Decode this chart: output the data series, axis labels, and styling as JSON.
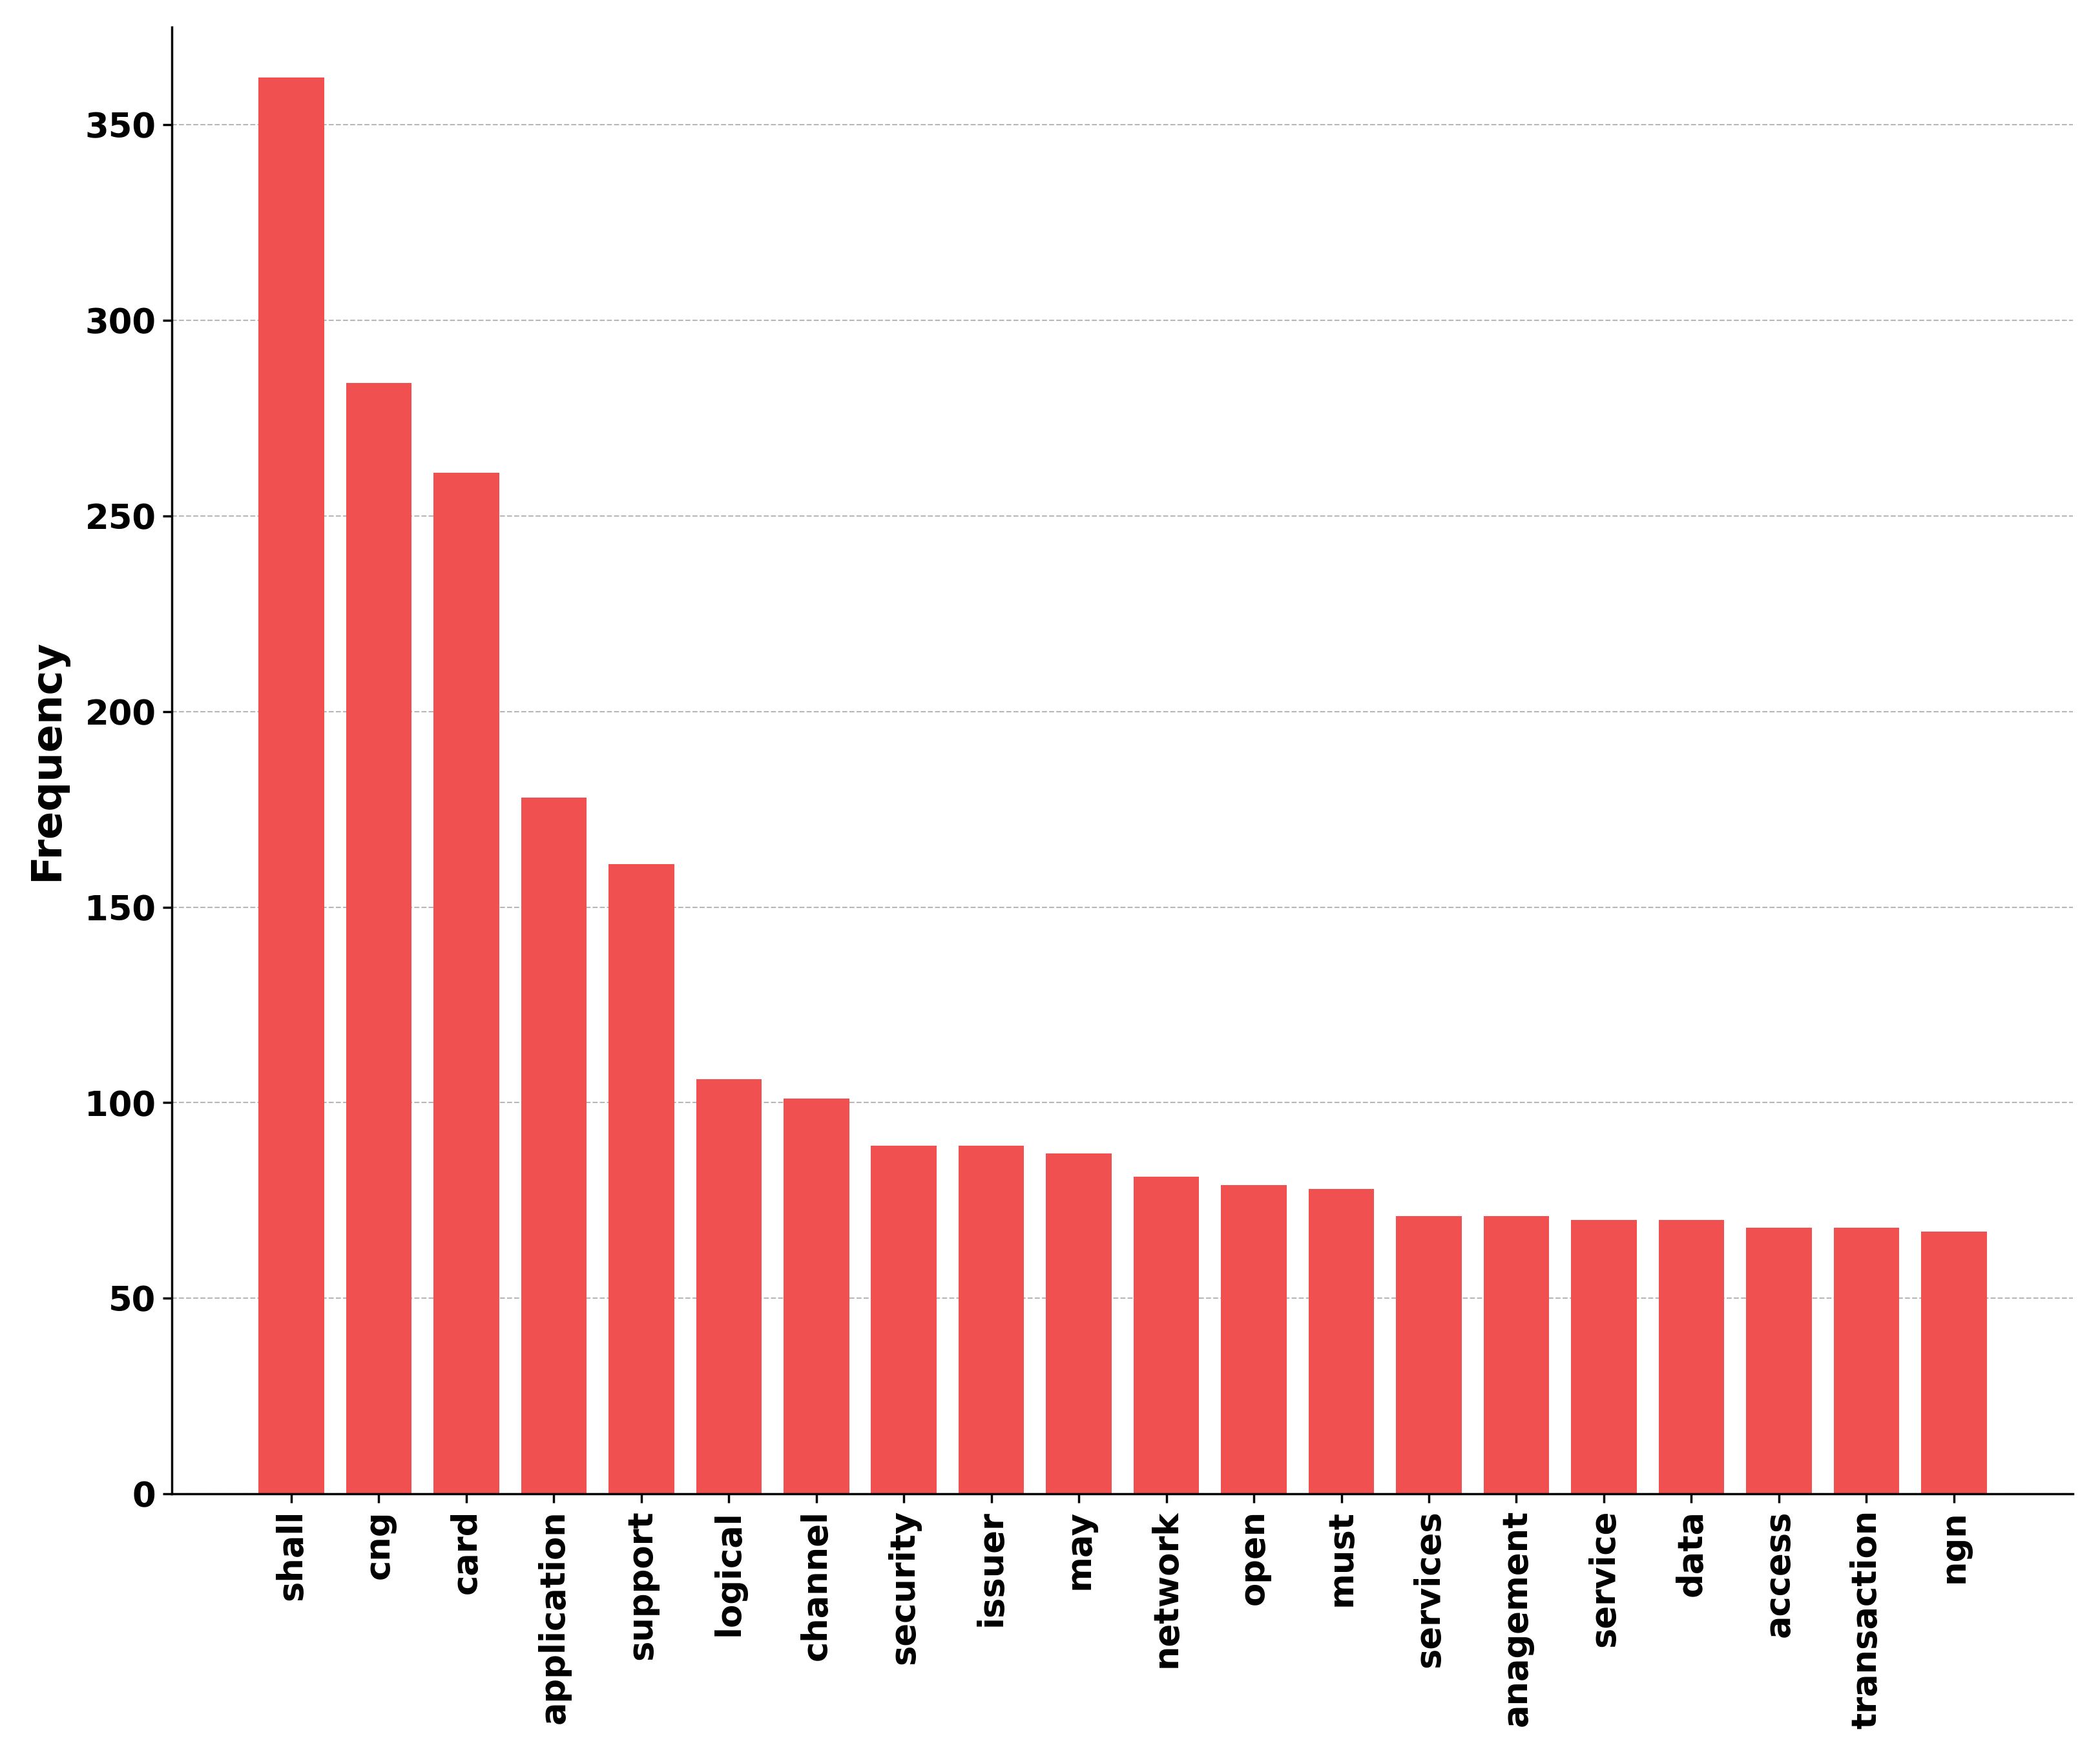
{
  "categories": [
    "shall",
    "cng",
    "card",
    "application",
    "support",
    "logical",
    "channel",
    "security",
    "issuer",
    "may",
    "network",
    "open",
    "must",
    "services",
    "anagement",
    "service",
    "data",
    "access",
    "transaction",
    "ngn"
  ],
  "values": [
    362,
    284,
    261,
    178,
    161,
    106,
    101,
    89,
    89,
    87,
    81,
    79,
    78,
    71,
    71,
    70,
    70,
    68,
    68,
    67
  ],
  "bar_color": "#f05050",
  "ylabel": "Frequency",
  "ylim": [
    0,
    375
  ],
  "yticks": [
    0,
    50,
    100,
    150,
    200,
    250,
    300,
    350
  ],
  "background_color": "#ffffff",
  "grid_color": "#b0b0b0",
  "tick_label_fontsize": 38,
  "ylabel_fontsize": 46,
  "bar_width": 0.75
}
